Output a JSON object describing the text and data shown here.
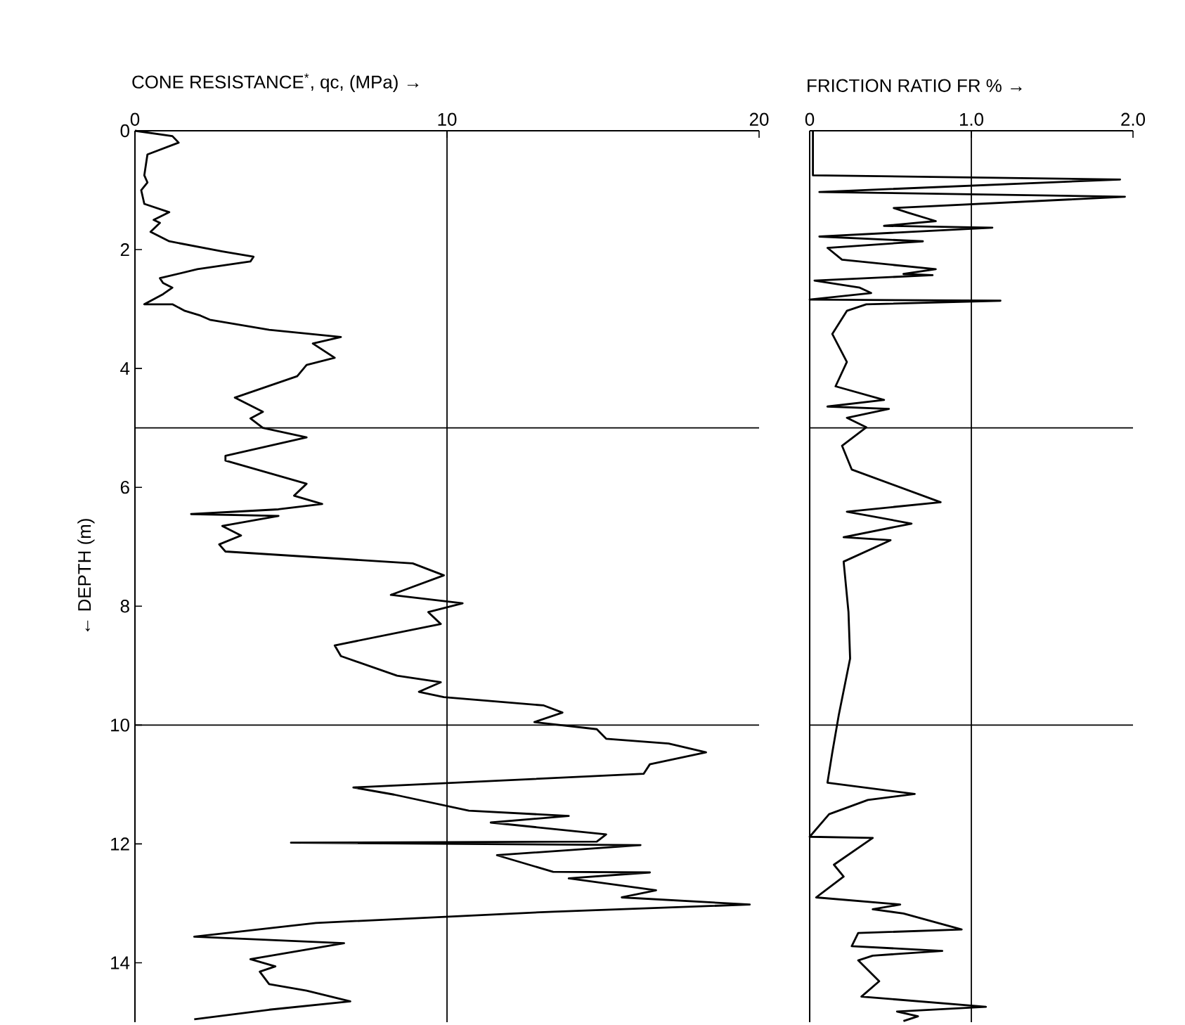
{
  "chart_data": [
    {
      "type": "line",
      "xlabel": "CONE RESISTANCE$^{*}$, qc, (MPa) →",
      "ylabel": "← DEPTH (m)",
      "xlim": [
        0,
        20
      ],
      "xticks": [
        0,
        10,
        20
      ],
      "ylim": [
        15,
        0
      ],
      "yticks": [
        0,
        2,
        4,
        6,
        8,
        10,
        12,
        14
      ],
      "ref_lines": [
        {
          "axis": "x",
          "value": 10
        },
        {
          "axis": "y",
          "value": 5
        },
        {
          "axis": "y",
          "value": 10
        }
      ],
      "series": [
        {
          "color": "#000000",
          "x": [
            0.0,
            1.2,
            1.4,
            0.4,
            0.3,
            0.4,
            0.2,
            0.3,
            1.1,
            0.6,
            0.8,
            0.5,
            1.1,
            2.8,
            3.8,
            3.7,
            2.0,
            0.8,
            0.9,
            1.2,
            0.9,
            0.3,
            1.2,
            1.6,
            2.1,
            2.4,
            4.3,
            6.6,
            5.7,
            6.4,
            5.5,
            5.2,
            3.2,
            4.1,
            3.7,
            4.1,
            5.5,
            2.9,
            2.9,
            5.5,
            5.1,
            6.0,
            4.6,
            1.8,
            4.6,
            2.8,
            3.4,
            2.7,
            2.9,
            8.9,
            9.9,
            8.2,
            10.5,
            9.4,
            9.8,
            6.4,
            6.6,
            8.4,
            9.8,
            9.1,
            9.9,
            13.1,
            13.7,
            12.8,
            14.8,
            15.1,
            17.1,
            18.3,
            16.5,
            16.3,
            7.0,
            8.3,
            10.7,
            13.9,
            11.4,
            15.1,
            14.8,
            5.0,
            16.2,
            11.6,
            13.4,
            16.5,
            13.9,
            16.7,
            15.6,
            19.7,
            13.4,
            5.8,
            1.9,
            6.7,
            3.7,
            4.5,
            4.0,
            4.3,
            5.5,
            6.9,
            4.3,
            1.9
          ],
          "values": [
            0.0,
            0.09,
            0.2,
            0.4,
            0.75,
            0.87,
            1.0,
            1.23,
            1.37,
            1.5,
            1.55,
            1.7,
            1.86,
            2.03,
            2.12,
            2.2,
            2.33,
            2.48,
            2.56,
            2.64,
            2.75,
            2.92,
            2.92,
            3.03,
            3.11,
            3.18,
            3.35,
            3.47,
            3.58,
            3.82,
            3.94,
            4.13,
            4.49,
            4.73,
            4.84,
            5.0,
            5.16,
            5.47,
            5.55,
            5.94,
            6.14,
            6.28,
            6.37,
            6.45,
            6.48,
            6.65,
            6.81,
            6.96,
            7.08,
            7.28,
            7.48,
            7.81,
            7.95,
            8.1,
            8.3,
            8.66,
            8.84,
            9.17,
            9.28,
            9.44,
            9.53,
            9.67,
            9.79,
            9.95,
            10.07,
            10.23,
            10.31,
            10.46,
            10.66,
            10.82,
            11.05,
            11.17,
            11.44,
            11.53,
            11.64,
            11.84,
            11.96,
            11.98,
            12.02,
            12.19,
            12.47,
            12.48,
            12.58,
            12.78,
            12.9,
            13.02,
            13.14,
            13.33,
            13.56,
            13.67,
            13.94,
            14.06,
            14.15,
            14.36,
            14.47,
            14.65,
            14.79,
            14.95
          ]
        }
      ]
    },
    {
      "type": "line",
      "xlabel": "FRICTION RATIO FR % →",
      "xlim": [
        0,
        2
      ],
      "xticks": [
        0,
        {
          "value": 1,
          "label": "1.0"
        },
        {
          "value": 2,
          "label": "2.0"
        }
      ],
      "ylim": [
        15,
        0
      ],
      "tick_labels": "x",
      "ref_lines": [
        {
          "axis": "x",
          "value": 1
        },
        {
          "axis": "y",
          "value": 5
        },
        {
          "axis": "y",
          "value": 10
        }
      ],
      "series": [
        {
          "color": "#000000",
          "x": [
            0.02,
            0.02,
            1.92,
            0.06,
            1.95,
            0.52,
            0.61,
            0.78,
            0.46,
            1.13,
            0.06,
            0.7,
            0.11,
            0.2,
            0.78,
            0.58,
            0.76,
            0.03,
            0.31,
            0.38,
            0.0,
            1.18,
            0.35,
            0.23,
            0.14,
            0.23,
            0.16,
            0.46,
            0.11,
            0.49,
            0.23,
            0.35,
            0.2,
            0.26,
            0.81,
            0.23,
            0.63,
            0.21,
            0.5,
            0.21,
            0.24,
            0.25,
            0.18,
            0.14,
            0.11,
            0.65,
            0.36,
            0.12,
            0.0,
            0.39,
            0.15,
            0.21,
            0.04,
            0.56,
            0.39,
            0.58,
            0.94,
            0.3,
            0.26,
            0.82,
            0.39,
            0.3,
            0.43,
            0.32,
            1.09,
            0.54,
            0.67,
            0.58
          ],
          "values": [
            0.0,
            0.75,
            0.82,
            1.03,
            1.11,
            1.3,
            1.38,
            1.52,
            1.6,
            1.63,
            1.78,
            1.86,
            1.97,
            2.17,
            2.33,
            2.41,
            2.43,
            2.52,
            2.64,
            2.73,
            2.84,
            2.86,
            2.92,
            3.03,
            3.42,
            3.89,
            4.3,
            4.53,
            4.64,
            4.68,
            4.83,
            4.99,
            5.3,
            5.7,
            6.25,
            6.41,
            6.61,
            6.84,
            6.89,
            7.25,
            8.1,
            8.88,
            9.83,
            10.46,
            10.97,
            11.16,
            11.26,
            11.5,
            11.88,
            11.9,
            12.35,
            12.55,
            12.9,
            13.02,
            13.1,
            13.17,
            13.44,
            13.5,
            13.72,
            13.8,
            13.88,
            13.96,
            14.31,
            14.57,
            14.74,
            14.82,
            14.9,
            14.98
          ]
        }
      ]
    }
  ]
}
